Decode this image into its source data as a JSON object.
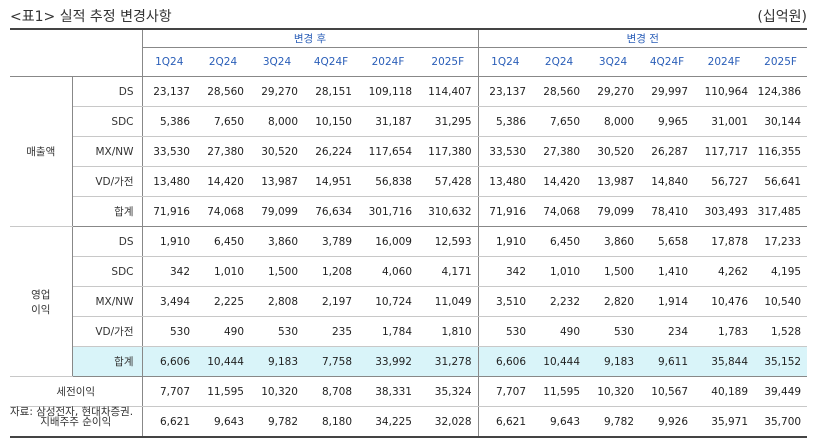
{
  "title": "<표1> 실적 추정 변경사항",
  "unit": "(십억원)",
  "source_note": "자료: 삼성전자, 현대차증권.",
  "header": {
    "after_label": "변경 후",
    "before_label": "변경 전",
    "periods": [
      "1Q24",
      "2Q24",
      "3Q24",
      "4Q24F",
      "2024F",
      "2025F"
    ]
  },
  "sections": [
    {
      "label": "매출액",
      "rows": [
        {
          "name": "DS",
          "after": [
            "23,137",
            "28,560",
            "29,270",
            "28,151",
            "109,118",
            "114,407"
          ],
          "before": [
            "23,137",
            "28,560",
            "29,270",
            "29,997",
            "110,964",
            "124,386"
          ]
        },
        {
          "name": "SDC",
          "after": [
            "5,386",
            "7,650",
            "8,000",
            "10,150",
            "31,187",
            "31,295"
          ],
          "before": [
            "5,386",
            "7,650",
            "8,000",
            "9,965",
            "31,001",
            "30,144"
          ]
        },
        {
          "name": "MX/NW",
          "after": [
            "33,530",
            "27,380",
            "30,520",
            "26,224",
            "117,654",
            "117,380"
          ],
          "before": [
            "33,530",
            "27,380",
            "30,520",
            "26,287",
            "117,717",
            "116,355"
          ]
        },
        {
          "name": "VD/가전",
          "after": [
            "13,480",
            "14,420",
            "13,987",
            "14,951",
            "56,838",
            "57,428"
          ],
          "before": [
            "13,480",
            "14,420",
            "13,987",
            "14,840",
            "56,727",
            "56,641"
          ]
        },
        {
          "name": "합계",
          "after": [
            "71,916",
            "74,068",
            "79,099",
            "76,634",
            "301,716",
            "310,632"
          ],
          "before": [
            "71,916",
            "74,068",
            "79,099",
            "78,410",
            "303,493",
            "317,485"
          ]
        }
      ]
    },
    {
      "label_line1": "영업",
      "label_line2": "이익",
      "rows": [
        {
          "name": "DS",
          "after": [
            "1,910",
            "6,450",
            "3,860",
            "3,789",
            "16,009",
            "12,593"
          ],
          "before": [
            "1,910",
            "6,450",
            "3,860",
            "5,658",
            "17,878",
            "17,233"
          ]
        },
        {
          "name": "SDC",
          "after": [
            "342",
            "1,010",
            "1,500",
            "1,208",
            "4,060",
            "4,171"
          ],
          "before": [
            "342",
            "1,010",
            "1,500",
            "1,410",
            "4,262",
            "4,195"
          ]
        },
        {
          "name": "MX/NW",
          "after": [
            "3,494",
            "2,225",
            "2,808",
            "2,197",
            "10,724",
            "11,049"
          ],
          "before": [
            "3,510",
            "2,232",
            "2,820",
            "1,914",
            "10,476",
            "10,540"
          ]
        },
        {
          "name": "VD/가전",
          "after": [
            "530",
            "490",
            "530",
            "235",
            "1,784",
            "1,810"
          ],
          "before": [
            "530",
            "490",
            "530",
            "234",
            "1,783",
            "1,528"
          ]
        },
        {
          "name": "합계",
          "after": [
            "6,606",
            "10,444",
            "9,183",
            "7,758",
            "33,992",
            "31,278"
          ],
          "before": [
            "6,606",
            "10,444",
            "9,183",
            "9,611",
            "35,844",
            "35,152"
          ]
        }
      ]
    }
  ],
  "extra_rows": [
    {
      "name": "세전이익",
      "after": [
        "7,707",
        "11,595",
        "10,320",
        "8,708",
        "38,331",
        "35,324"
      ],
      "before": [
        "7,707",
        "11,595",
        "10,320",
        "10,567",
        "40,189",
        "39,449"
      ]
    },
    {
      "name": "지배주주 순이익",
      "after": [
        "6,621",
        "9,643",
        "9,782",
        "8,180",
        "34,225",
        "32,028"
      ],
      "before": [
        "6,621",
        "9,643",
        "9,782",
        "9,926",
        "35,971",
        "35,700"
      ]
    }
  ],
  "colors": {
    "header_text": "#2a5eb8",
    "highlight_row": "#d9f4f9"
  }
}
